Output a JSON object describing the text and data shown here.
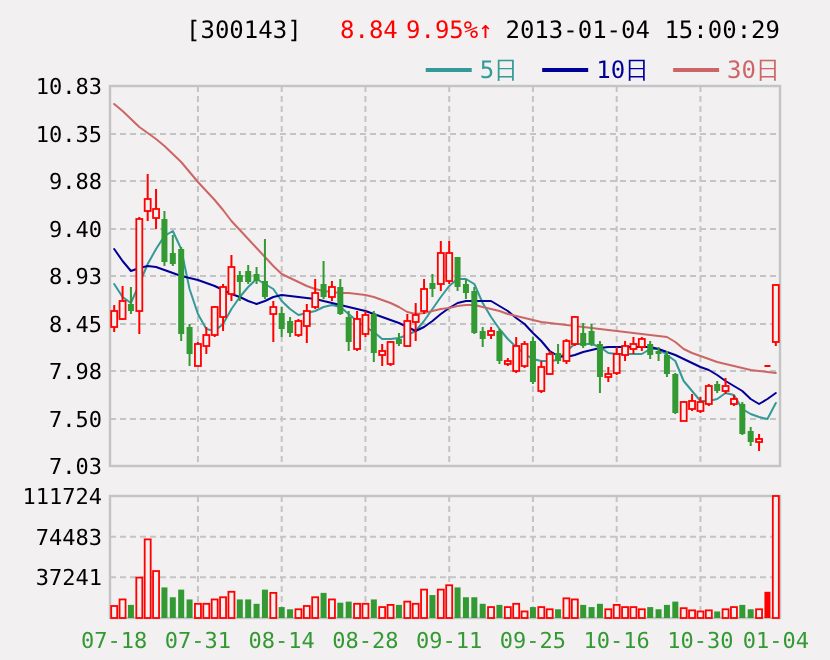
{
  "chart_data": [
    {
      "type": "candlestick",
      "title": "[300143]",
      "annotations": [
        "8.84",
        "9.95%↑",
        "2013-01-04 15:00:29"
      ],
      "categories": [
        null,
        null,
        null,
        null,
        null,
        null,
        null,
        null,
        null,
        null,
        null,
        null,
        null,
        null,
        null,
        null,
        null,
        null,
        null,
        null,
        null,
        null,
        null,
        null,
        null,
        null,
        null,
        null,
        null,
        null,
        null,
        null,
        null,
        null,
        null,
        null,
        null,
        null,
        null,
        null,
        null,
        null,
        null,
        null,
        null,
        null,
        null,
        null,
        null,
        null,
        null,
        null,
        null,
        null,
        null,
        null,
        null,
        null,
        null,
        null,
        null,
        null,
        null,
        null,
        null,
        null,
        null,
        null,
        null,
        null,
        null,
        null,
        null,
        null,
        null,
        null,
        null,
        null,
        null,
        null
      ],
      "ohlc": [
        [
          8.42,
          8.64,
          8.37,
          8.58
        ],
        [
          8.5,
          8.83,
          8.49,
          8.68
        ],
        [
          8.65,
          8.82,
          8.55,
          8.58
        ],
        [
          8.58,
          9.52,
          8.35,
          9.5
        ],
        [
          9.58,
          9.95,
          9.48,
          9.7
        ],
        [
          9.51,
          9.8,
          9.4,
          9.6
        ],
        [
          9.5,
          9.58,
          9.03,
          9.07
        ],
        [
          9.16,
          9.34,
          9.03,
          9.05
        ],
        [
          9.2,
          9.22,
          8.28,
          8.35
        ],
        [
          8.42,
          8.45,
          8.03,
          8.15
        ],
        [
          8.03,
          8.27,
          8.03,
          8.25
        ],
        [
          8.23,
          8.42,
          8.15,
          8.34
        ],
        [
          8.34,
          8.63,
          8.32,
          8.62
        ],
        [
          8.52,
          8.85,
          8.38,
          8.82
        ],
        [
          8.75,
          9.14,
          8.68,
          9.02
        ],
        [
          8.94,
          8.98,
          8.68,
          8.87
        ],
        [
          8.98,
          9.04,
          8.85,
          8.87
        ],
        [
          8.95,
          9.02,
          8.85,
          8.88
        ],
        [
          8.88,
          9.3,
          8.7,
          8.72
        ],
        [
          8.55,
          8.68,
          8.27,
          8.62
        ],
        [
          8.56,
          8.62,
          8.32,
          8.4
        ],
        [
          8.48,
          8.52,
          8.32,
          8.36
        ],
        [
          8.34,
          8.5,
          8.32,
          8.48
        ],
        [
          8.43,
          8.65,
          8.26,
          8.58
        ],
        [
          8.62,
          8.9,
          8.6,
          8.76
        ],
        [
          8.85,
          9.08,
          8.7,
          8.72
        ],
        [
          8.72,
          8.88,
          8.68,
          8.82
        ],
        [
          8.82,
          8.9,
          8.54,
          8.55
        ],
        [
          8.52,
          8.58,
          8.18,
          8.27
        ],
        [
          8.2,
          8.58,
          8.18,
          8.5
        ],
        [
          8.35,
          8.58,
          8.32,
          8.54
        ],
        [
          8.55,
          8.58,
          8.07,
          8.16
        ],
        [
          8.14,
          8.25,
          8.03,
          8.18
        ],
        [
          8.05,
          8.28,
          8.03,
          8.27
        ],
        [
          8.3,
          8.36,
          8.23,
          8.25
        ],
        [
          8.23,
          8.55,
          8.22,
          8.48
        ],
        [
          8.47,
          8.66,
          8.28,
          8.54
        ],
        [
          8.58,
          8.9,
          8.55,
          8.8
        ],
        [
          8.86,
          8.95,
          8.72,
          8.8
        ],
        [
          8.85,
          9.28,
          8.78,
          9.16
        ],
        [
          8.88,
          9.28,
          8.85,
          9.16
        ],
        [
          9.12,
          9.12,
          8.78,
          8.82
        ],
        [
          8.85,
          8.9,
          8.7,
          8.76
        ],
        [
          8.78,
          8.82,
          8.35,
          8.36
        ],
        [
          8.38,
          8.42,
          8.22,
          8.3
        ],
        [
          8.34,
          8.42,
          8.3,
          8.38
        ],
        [
          8.38,
          8.4,
          8.05,
          8.08
        ],
        [
          8.05,
          8.11,
          8.03,
          8.08
        ],
        [
          7.98,
          8.32,
          7.96,
          8.23
        ],
        [
          8.03,
          8.28,
          8.01,
          8.25
        ],
        [
          8.28,
          8.32,
          7.85,
          7.87
        ],
        [
          7.78,
          8.08,
          7.76,
          8.02
        ],
        [
          7.95,
          8.18,
          7.94,
          8.15
        ],
        [
          8.16,
          8.25,
          8.05,
          8.08
        ],
        [
          8.08,
          8.3,
          8.05,
          8.28
        ],
        [
          8.25,
          8.53,
          8.23,
          8.52
        ],
        [
          8.36,
          8.46,
          8.21,
          8.23
        ],
        [
          8.38,
          8.45,
          8.23,
          8.25
        ],
        [
          8.25,
          8.28,
          7.76,
          7.92
        ],
        [
          7.92,
          8.02,
          7.87,
          7.95
        ],
        [
          7.96,
          8.22,
          7.94,
          8.15
        ],
        [
          8.14,
          8.28,
          8.08,
          8.23
        ],
        [
          8.2,
          8.32,
          8.15,
          8.25
        ],
        [
          8.22,
          8.32,
          8.18,
          8.3
        ],
        [
          8.25,
          8.28,
          8.1,
          8.14
        ],
        [
          8.18,
          8.22,
          8.08,
          8.15
        ],
        [
          8.14,
          8.18,
          7.92,
          7.95
        ],
        [
          7.95,
          7.96,
          7.55,
          7.56
        ],
        [
          7.48,
          7.68,
          7.48,
          7.67
        ],
        [
          7.6,
          7.75,
          7.58,
          7.68
        ],
        [
          7.58,
          7.72,
          7.56,
          7.67
        ],
        [
          7.65,
          7.85,
          7.63,
          7.83
        ],
        [
          7.85,
          7.88,
          7.76,
          7.78
        ],
        [
          7.78,
          7.91,
          7.75,
          7.83
        ],
        [
          7.65,
          7.74,
          7.63,
          7.7
        ],
        [
          7.65,
          7.67,
          7.34,
          7.35
        ],
        [
          7.38,
          7.42,
          7.23,
          7.27
        ],
        [
          7.27,
          7.35,
          7.18,
          7.3
        ],
        [
          8.04,
          8.04,
          8.04,
          8.04
        ],
        [
          8.27,
          8.85,
          8.23,
          8.84
        ]
      ],
      "colors": [
        "#ff0000",
        "#ff0000",
        "#339933",
        "#ff0000",
        "#ff0000",
        "#ff0000",
        "#339933",
        "#339933",
        "#339933",
        "#339933",
        "#ff0000",
        "#ff0000",
        "#ff0000",
        "#ff0000",
        "#ff0000",
        "#339933",
        "#339933",
        "#339933",
        "#339933",
        "#ff0000",
        "#339933",
        "#339933",
        "#ff0000",
        "#ff0000",
        "#ff0000",
        "#339933",
        "#ff0000",
        "#339933",
        "#339933",
        "#ff0000",
        "#ff0000",
        "#339933",
        "#ff0000",
        "#ff0000",
        "#339933",
        "#ff0000",
        "#ff0000",
        "#ff0000",
        "#339933",
        "#ff0000",
        "#ff0000",
        "#339933",
        "#339933",
        "#339933",
        "#339933",
        "#ff0000",
        "#339933",
        "#ff0000",
        "#ff0000",
        "#ff0000",
        "#339933",
        "#ff0000",
        "#ff0000",
        "#339933",
        "#ff0000",
        "#ff0000",
        "#339933",
        "#339933",
        "#339933",
        "#ff0000",
        "#ff0000",
        "#ff0000",
        "#ff0000",
        "#ff0000",
        "#339933",
        "#339933",
        "#339933",
        "#339933",
        "#ff0000",
        "#ff0000",
        "#ff0000",
        "#ff0000",
        "#339933",
        "#ff0000",
        "#ff0000",
        "#339933",
        "#339933",
        "#ff0000",
        "#ff0000",
        "#ff0000"
      ],
      "series": [
        {
          "name": "5日",
          "type": "line",
          "color": "#339999",
          "values": [
            8.85,
            8.72,
            8.66,
            8.85,
            9.05,
            9.2,
            9.33,
            9.38,
            9.2,
            8.8,
            8.55,
            8.4,
            8.38,
            8.45,
            8.6,
            8.72,
            8.82,
            8.9,
            8.85,
            8.8,
            8.68,
            8.6,
            8.54,
            8.56,
            8.58,
            8.62,
            8.64,
            8.62,
            8.55,
            8.48,
            8.42,
            8.37,
            8.3,
            8.3,
            8.31,
            8.34,
            8.38,
            8.48,
            8.6,
            8.72,
            8.83,
            8.9,
            8.9,
            8.85,
            8.66,
            8.52,
            8.4,
            8.3,
            8.22,
            8.15,
            8.1,
            8.08,
            8.08,
            8.09,
            8.18,
            8.25,
            8.25,
            8.25,
            8.22,
            8.16,
            8.15,
            8.15,
            8.15,
            8.15,
            8.2,
            8.2,
            8.14,
            8.08,
            7.88,
            7.78,
            7.68,
            7.68,
            7.7,
            7.76,
            7.74,
            7.6,
            7.55,
            7.52,
            7.5,
            7.66
          ]
        },
        {
          "name": "10日",
          "type": "line",
          "color": "#000099",
          "values": [
            9.2,
            9.08,
            8.98,
            9.01,
            9.03,
            9.02,
            8.99,
            8.96,
            8.93,
            8.91,
            8.89,
            8.86,
            8.83,
            8.79,
            8.75,
            8.72,
            8.68,
            8.65,
            8.68,
            8.72,
            8.74,
            8.73,
            8.72,
            8.71,
            8.7,
            8.68,
            8.66,
            8.64,
            8.62,
            8.6,
            8.58,
            8.55,
            8.52,
            8.49,
            8.46,
            8.42,
            8.38,
            8.42,
            8.48,
            8.55,
            8.61,
            8.66,
            8.68,
            8.68,
            8.68,
            8.68,
            8.63,
            8.58,
            8.51,
            8.45,
            8.36,
            8.28,
            8.18,
            8.13,
            8.12,
            8.14,
            8.17,
            8.19,
            8.21,
            8.22,
            8.22,
            8.22,
            8.22,
            8.22,
            8.22,
            8.2,
            8.17,
            8.14,
            8.1,
            8.06,
            8.02,
            7.99,
            7.94,
            7.88,
            7.83,
            7.78,
            7.7,
            7.65,
            7.7,
            7.76
          ]
        },
        {
          "name": "30日",
          "type": "line",
          "color": "#cc6666",
          "values": [
            10.65,
            10.58,
            10.5,
            10.42,
            10.36,
            10.3,
            10.23,
            10.15,
            10.07,
            9.97,
            9.87,
            9.78,
            9.69,
            9.59,
            9.48,
            9.39,
            9.3,
            9.21,
            9.12,
            9.03,
            8.95,
            8.91,
            8.87,
            8.83,
            8.8,
            8.78,
            8.77,
            8.76,
            8.76,
            8.75,
            8.74,
            8.72,
            8.69,
            8.66,
            8.62,
            8.57,
            8.55,
            8.56,
            8.58,
            8.6,
            8.61,
            8.63,
            8.64,
            8.64,
            8.62,
            8.6,
            8.58,
            8.55,
            8.53,
            8.51,
            8.49,
            8.47,
            8.46,
            8.45,
            8.44,
            8.43,
            8.42,
            8.41,
            8.4,
            8.39,
            8.38,
            8.37,
            8.36,
            8.35,
            8.34,
            8.33,
            8.32,
            8.27,
            8.2,
            8.16,
            8.13,
            8.1,
            8.07,
            8.05,
            8.03,
            8.01,
            7.99,
            7.98,
            7.97,
            7.96
          ]
        }
      ],
      "ylim": [
        7.03,
        10.83
      ],
      "yticks": [
        {
          "value": 7.03,
          "label": "7.03"
        },
        {
          "value": 7.5,
          "label": "7.50"
        },
        {
          "value": 7.98,
          "label": "7.98"
        },
        {
          "value": 8.45,
          "label": "8.45"
        },
        {
          "value": 8.93,
          "label": "8.93"
        },
        {
          "value": 9.4,
          "label": "9.40"
        },
        {
          "value": 9.88,
          "label": "9.88"
        },
        {
          "value": 10.35,
          "label": "10.35"
        },
        {
          "value": 10.83,
          "label": "10.83"
        }
      ],
      "grid": true,
      "legend": "top right",
      "tick_labels": "y"
    },
    {
      "type": "bar",
      "categories": [
        "07-18",
        null,
        null,
        null,
        null,
        null,
        null,
        null,
        null,
        null,
        "07-31",
        null,
        null,
        null,
        null,
        null,
        null,
        null,
        null,
        null,
        "08-14",
        null,
        null,
        null,
        null,
        null,
        null,
        null,
        null,
        null,
        "08-28",
        null,
        null,
        null,
        null,
        null,
        null,
        null,
        null,
        null,
        "09-11",
        null,
        null,
        null,
        null,
        null,
        null,
        null,
        null,
        null,
        "09-25",
        null,
        null,
        null,
        null,
        null,
        null,
        null,
        null,
        null,
        "10-16",
        null,
        null,
        null,
        null,
        null,
        null,
        null,
        null,
        null,
        "10-30",
        null,
        null,
        null,
        null,
        null,
        null,
        null,
        null,
        "01-04"
      ],
      "values": [
        11000,
        17000,
        12000,
        37000,
        72000,
        43000,
        28000,
        19000,
        26000,
        17000,
        13000,
        13000,
        17000,
        19000,
        24000,
        17000,
        17000,
        13000,
        26000,
        23000,
        10000,
        8000,
        8000,
        11000,
        19000,
        23000,
        17000,
        14000,
        15000,
        13000,
        13000,
        17000,
        10000,
        12000,
        12000,
        15000,
        13000,
        26000,
        21000,
        26000,
        30000,
        28000,
        19000,
        19000,
        13000,
        10000,
        12000,
        10000,
        13000,
        6000,
        10000,
        10000,
        8000,
        8000,
        18000,
        17000,
        12000,
        10000,
        13000,
        8000,
        12000,
        10000,
        10000,
        8000,
        10000,
        8000,
        12000,
        15000,
        9000,
        7000,
        6000,
        7000,
        6000,
        8000,
        10000,
        12000,
        8000,
        8000,
        24000,
        111724
      ],
      "colors": [
        "#ff0000",
        "#ff0000",
        "#339933",
        "#ff0000",
        "#ff0000",
        "#ff0000",
        "#339933",
        "#339933",
        "#339933",
        "#339933",
        "#ff0000",
        "#ff0000",
        "#ff0000",
        "#ff0000",
        "#ff0000",
        "#339933",
        "#339933",
        "#339933",
        "#339933",
        "#ff0000",
        "#339933",
        "#339933",
        "#ff0000",
        "#ff0000",
        "#ff0000",
        "#339933",
        "#ff0000",
        "#339933",
        "#339933",
        "#ff0000",
        "#ff0000",
        "#339933",
        "#ff0000",
        "#ff0000",
        "#339933",
        "#ff0000",
        "#ff0000",
        "#ff0000",
        "#339933",
        "#ff0000",
        "#ff0000",
        "#339933",
        "#339933",
        "#339933",
        "#339933",
        "#ff0000",
        "#339933",
        "#ff0000",
        "#ff0000",
        "#ff0000",
        "#339933",
        "#ff0000",
        "#ff0000",
        "#339933",
        "#ff0000",
        "#ff0000",
        "#339933",
        "#339933",
        "#339933",
        "#ff0000",
        "#ff0000",
        "#ff0000",
        "#ff0000",
        "#ff0000",
        "#339933",
        "#339933",
        "#339933",
        "#339933",
        "#ff0000",
        "#ff0000",
        "#ff0000",
        "#ff0000",
        "#339933",
        "#ff0000",
        "#ff0000",
        "#339933",
        "#339933",
        "#ff0000",
        "#ff0000",
        "#ff0000"
      ],
      "ylim": [
        0,
        111724
      ],
      "yticks": [
        37241,
        74483,
        111724
      ],
      "grid": true
    }
  ]
}
